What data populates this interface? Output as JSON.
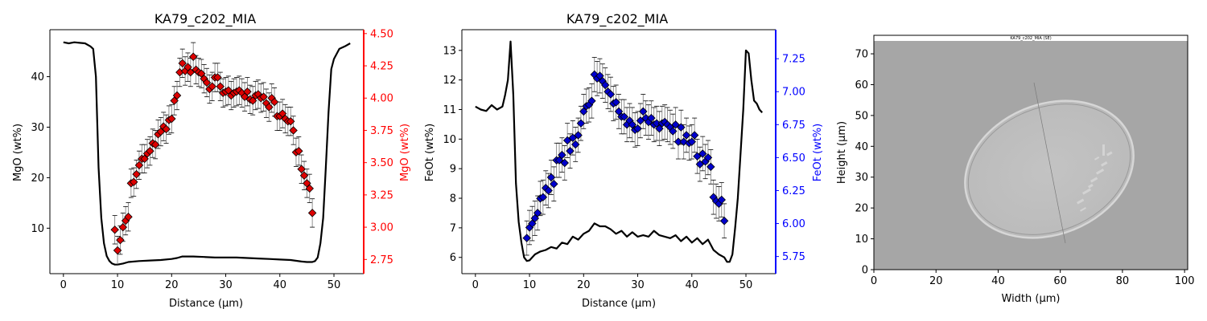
{
  "colors": {
    "left_axis": "#000000",
    "mgo_axis": "#ff0000",
    "feo_axis": "#0000ff",
    "mgo_marker": "#dd0000",
    "feo_marker": "#0000cc"
  },
  "chart_data": [
    {
      "type": "line+scatter",
      "title": "KA79_c202_MIA",
      "xlabel": "Distance (µm)",
      "ylabel_left": "MgO (wt%)",
      "ylabel_right": "MgO (wt%)",
      "xlim": [
        -2.5,
        55.5
      ],
      "ylim_left": [
        1,
        49.3
      ],
      "ylim_right": [
        2.64,
        4.53
      ],
      "xticks": [
        0,
        10,
        20,
        30,
        40,
        50
      ],
      "yticks_left": [
        10,
        20,
        30,
        40
      ],
      "yticks_right": [
        2.75,
        3.0,
        3.25,
        3.5,
        3.75,
        4.0,
        4.25,
        4.5
      ],
      "tick_labels_left": [
        "10",
        "20",
        "30",
        "40"
      ],
      "tick_labels_right": [
        "2.75",
        "3.00",
        "3.25",
        "3.50",
        "3.75",
        "4.00",
        "4.25",
        "4.50"
      ],
      "tick_labels_x": [
        "0",
        "10",
        "20",
        "30",
        "40",
        "50"
      ],
      "line": {
        "x": [
          0,
          1,
          2,
          3,
          4,
          5,
          5.5,
          6,
          6.5,
          7,
          7.5,
          8,
          8.5,
          9,
          9.5,
          10,
          11,
          12,
          14,
          16,
          18,
          20,
          21,
          22,
          24,
          26,
          28,
          30,
          32,
          34,
          36,
          38,
          40,
          42,
          44,
          45,
          46,
          46.5,
          47,
          47.5,
          48,
          48.5,
          49,
          49.5,
          50,
          51,
          52,
          53
        ],
        "y": [
          46.8,
          46.6,
          46.8,
          46.7,
          46.6,
          46,
          45.5,
          40,
          22,
          12,
          7,
          4.5,
          3.5,
          3.0,
          2.8,
          2.8,
          3.0,
          3.3,
          3.5,
          3.6,
          3.7,
          3.9,
          4.1,
          4.4,
          4.4,
          4.3,
          4.2,
          4.2,
          4.2,
          4.1,
          4.0,
          3.9,
          3.8,
          3.7,
          3.4,
          3.3,
          3.3,
          3.5,
          4.2,
          7,
          12,
          22,
          33,
          41.5,
          43.5,
          45.5,
          46.0,
          46.6
        ]
      },
      "points": {
        "x": [
          9.5,
          10,
          10.5,
          11,
          11.5,
          12,
          12.5,
          13,
          13.5,
          14,
          14.5,
          15,
          15.5,
          16,
          16.5,
          17,
          17.5,
          18,
          18.5,
          19,
          19.5,
          20,
          20.5,
          21,
          21.5,
          22,
          22.5,
          23,
          23.5,
          24,
          24.5,
          25,
          25.5,
          26,
          26.5,
          27,
          27.5,
          28,
          28.5,
          29,
          29.5,
          30,
          30.5,
          31,
          31.5,
          32,
          32.5,
          33,
          33.5,
          34,
          34.5,
          35,
          35.5,
          36,
          36.5,
          37,
          37.5,
          38,
          38.5,
          39,
          39.5,
          40,
          40.5,
          41,
          41.5,
          42,
          42.5,
          43,
          43.5,
          44,
          44.5,
          45,
          45.5,
          46
        ],
        "y": [
          2.98,
          2.82,
          2.9,
          3.0,
          3.05,
          3.08,
          3.34,
          3.35,
          3.41,
          3.48,
          3.53,
          3.53,
          3.57,
          3.59,
          3.65,
          3.64,
          3.72,
          3.74,
          3.78,
          3.76,
          3.83,
          3.84,
          3.98,
          4.02,
          4.2,
          4.27,
          4.21,
          4.24,
          4.2,
          4.32,
          4.22,
          4.2,
          4.19,
          4.15,
          4.12,
          4.07,
          4.09,
          4.16,
          4.16,
          4.09,
          4.04,
          4.05,
          4.06,
          4.02,
          4.04,
          4.05,
          4.06,
          4.04,
          4.01,
          4.05,
          3.99,
          3.98,
          4.02,
          4.03,
          4.0,
          4.01,
          3.96,
          3.93,
          4.0,
          3.97,
          3.86,
          3.86,
          3.88,
          3.84,
          3.82,
          3.82,
          3.75,
          3.58,
          3.59,
          3.45,
          3.4,
          3.34,
          3.3,
          3.11
        ],
        "yerr": [
          0.11,
          0.11,
          0.11,
          0.11,
          0.11,
          0.11,
          0.11,
          0.11,
          0.11,
          0.11,
          0.11,
          0.11,
          0.11,
          0.11,
          0.11,
          0.11,
          0.11,
          0.11,
          0.11,
          0.11,
          0.11,
          0.11,
          0.11,
          0.11,
          0.11,
          0.11,
          0.11,
          0.11,
          0.11,
          0.11,
          0.11,
          0.11,
          0.11,
          0.11,
          0.11,
          0.11,
          0.11,
          0.11,
          0.11,
          0.11,
          0.11,
          0.11,
          0.11,
          0.11,
          0.11,
          0.11,
          0.11,
          0.11,
          0.11,
          0.11,
          0.11,
          0.11,
          0.11,
          0.11,
          0.11,
          0.11,
          0.11,
          0.11,
          0.11,
          0.11,
          0.11,
          0.11,
          0.11,
          0.11,
          0.11,
          0.11,
          0.11,
          0.11,
          0.11,
          0.11,
          0.11,
          0.11,
          0.11,
          0.11
        ]
      }
    },
    {
      "type": "line+scatter",
      "title": "KA79_c202_MIA",
      "xlabel": "Distance (µm)",
      "ylabel_left": "FeOt (wt%)",
      "ylabel_right": "FeOt (wt%)",
      "xlim": [
        -2.5,
        55.5
      ],
      "ylim_left": [
        5.45,
        13.7
      ],
      "ylim_right": [
        5.62,
        7.47
      ],
      "xticks": [
        0,
        10,
        20,
        30,
        40,
        50
      ],
      "yticks_left": [
        6,
        7,
        8,
        9,
        10,
        11,
        12,
        13
      ],
      "yticks_right": [
        5.75,
        6.0,
        6.25,
        6.5,
        6.75,
        7.0,
        7.25
      ],
      "tick_labels_left": [
        "6",
        "7",
        "8",
        "9",
        "10",
        "11",
        "12",
        "13"
      ],
      "tick_labels_right": [
        "5.75",
        "6.00",
        "6.25",
        "6.50",
        "6.75",
        "7.00",
        "7.25"
      ],
      "tick_labels_x": [
        "0",
        "10",
        "20",
        "30",
        "40",
        "50"
      ],
      "line": {
        "x": [
          0,
          1,
          2,
          3,
          4,
          5,
          5.5,
          6,
          6.5,
          7,
          7.5,
          8,
          8.5,
          9,
          9.5,
          10,
          11,
          12,
          13,
          14,
          15,
          16,
          17,
          18,
          19,
          20,
          21,
          22,
          23,
          24,
          25,
          26,
          27,
          28,
          29,
          30,
          31,
          32,
          33,
          34,
          35,
          36,
          37,
          38,
          39,
          40,
          41,
          42,
          43,
          44,
          45,
          46,
          46.5,
          47,
          47.5,
          48,
          48.5,
          49,
          49.5,
          50,
          50.5,
          51,
          51.5,
          52,
          52.5,
          53
        ],
        "y": [
          11.1,
          11.0,
          10.95,
          11.15,
          11.0,
          11.1,
          11.5,
          12.0,
          13.3,
          11.5,
          8.5,
          7.2,
          6.5,
          6.0,
          5.88,
          5.9,
          6.1,
          6.2,
          6.25,
          6.35,
          6.3,
          6.5,
          6.45,
          6.7,
          6.6,
          6.8,
          6.9,
          7.15,
          7.05,
          7.05,
          6.95,
          6.8,
          6.9,
          6.7,
          6.85,
          6.7,
          6.75,
          6.7,
          6.9,
          6.75,
          6.7,
          6.65,
          6.75,
          6.55,
          6.7,
          6.5,
          6.65,
          6.45,
          6.6,
          6.25,
          6.1,
          6.0,
          5.85,
          5.85,
          6.1,
          7.0,
          8.0,
          9.5,
          11.0,
          13.0,
          12.9,
          12.0,
          11.3,
          11.2,
          11.0,
          10.9
        ]
      },
      "points": {
        "x": [
          9.5,
          10,
          10.5,
          11,
          11.5,
          12,
          12.5,
          13,
          13.5,
          14,
          14.5,
          15,
          15.5,
          16,
          16.5,
          17,
          17.5,
          18,
          18.5,
          19,
          19.5,
          20,
          20.5,
          21,
          21.5,
          22,
          22.5,
          23,
          23.5,
          24,
          24.5,
          25,
          25.5,
          26,
          26.5,
          27,
          27.5,
          28,
          28.5,
          29,
          29.5,
          30,
          30.5,
          31,
          31.5,
          32,
          32.5,
          33,
          33.5,
          34,
          34.5,
          35,
          35.5,
          36,
          36.5,
          37,
          37.5,
          38,
          38.5,
          39,
          39.5,
          40,
          40.5,
          41,
          41.5,
          42,
          42.5,
          43,
          43.5,
          44,
          44.5,
          45,
          45.5,
          46
        ],
        "y": [
          5.89,
          5.97,
          6.0,
          6.04,
          6.08,
          6.19,
          6.2,
          6.27,
          6.25,
          6.35,
          6.3,
          6.48,
          6.48,
          6.52,
          6.46,
          6.63,
          6.55,
          6.65,
          6.6,
          6.67,
          6.76,
          6.85,
          6.89,
          6.9,
          6.93,
          7.13,
          7.1,
          7.12,
          7.08,
          7.05,
          7.0,
          6.98,
          6.91,
          6.92,
          6.85,
          6.81,
          6.81,
          6.75,
          6.78,
          6.75,
          6.71,
          6.72,
          6.78,
          6.85,
          6.8,
          6.77,
          6.8,
          6.75,
          6.76,
          6.72,
          6.76,
          6.77,
          6.75,
          6.73,
          6.7,
          6.75,
          6.62,
          6.73,
          6.62,
          6.67,
          6.61,
          6.62,
          6.67,
          6.51,
          6.45,
          6.53,
          6.47,
          6.5,
          6.43,
          6.2,
          6.17,
          6.15,
          6.18,
          6.02
        ],
        "yerr": [
          0.13,
          0.13,
          0.13,
          0.13,
          0.13,
          0.13,
          0.13,
          0.13,
          0.13,
          0.13,
          0.13,
          0.13,
          0.13,
          0.13,
          0.13,
          0.13,
          0.13,
          0.13,
          0.13,
          0.13,
          0.13,
          0.13,
          0.13,
          0.13,
          0.13,
          0.13,
          0.13,
          0.13,
          0.13,
          0.13,
          0.13,
          0.13,
          0.13,
          0.13,
          0.13,
          0.13,
          0.13,
          0.13,
          0.13,
          0.13,
          0.13,
          0.13,
          0.13,
          0.13,
          0.13,
          0.13,
          0.13,
          0.13,
          0.13,
          0.13,
          0.13,
          0.13,
          0.13,
          0.13,
          0.13,
          0.13,
          0.13,
          0.13,
          0.13,
          0.13,
          0.13,
          0.13,
          0.13,
          0.13,
          0.13,
          0.13,
          0.13,
          0.13,
          0.13,
          0.13,
          0.13,
          0.13,
          0.13,
          0.13
        ]
      }
    },
    {
      "type": "image",
      "title": "",
      "image_caption": "KA79_c202_MIA (SE)",
      "xlabel": "Width (µm)",
      "ylabel": "Height (µm)",
      "xlim": [
        0,
        101
      ],
      "ylim": [
        0,
        76
      ],
      "xticks": [
        0,
        20,
        40,
        60,
        80,
        100
      ],
      "yticks": [
        0,
        10,
        20,
        30,
        40,
        50,
        60,
        70
      ],
      "tick_labels_x": [
        "0",
        "20",
        "40",
        "60",
        "80",
        "100"
      ],
      "tick_labels_y": [
        "0",
        "10",
        "20",
        "30",
        "40",
        "50",
        "60",
        "70"
      ]
    }
  ]
}
